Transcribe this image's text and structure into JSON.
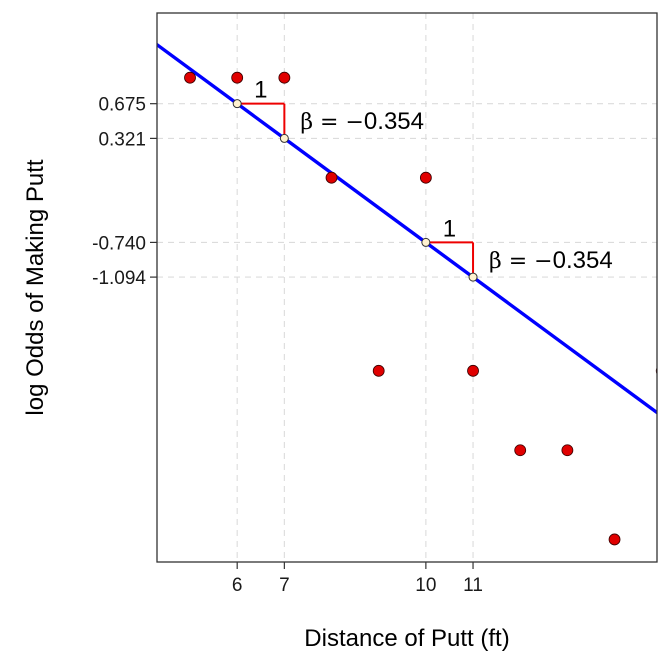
{
  "chart_data": {
    "type": "scatter",
    "xlabel": "Distance of Putt (ft)",
    "ylabel": "log Odds of Making Putt",
    "xlim": [
      4.3,
      14.9
    ],
    "ylim": [
      -4.0,
      1.6
    ],
    "x_ticks": [
      {
        "value": 6,
        "label": "6"
      },
      {
        "value": 7,
        "label": "7"
      },
      {
        "value": 10,
        "label": "10"
      },
      {
        "value": 11,
        "label": "11"
      }
    ],
    "y_ticks": [
      {
        "value": 0.675,
        "label": "0.675"
      },
      {
        "value": 0.321,
        "label": "0.321"
      },
      {
        "value": -0.74,
        "label": "-0.740"
      },
      {
        "value": -1.094,
        "label": "-1.094"
      }
    ],
    "grid": true,
    "points": [
      {
        "x": 5,
        "y": 0.94
      },
      {
        "x": 6,
        "y": 0.94
      },
      {
        "x": 7,
        "y": 0.94
      },
      {
        "x": 8,
        "y": -0.08
      },
      {
        "x": 9,
        "y": -2.05
      },
      {
        "x": 10,
        "y": -0.08
      },
      {
        "x": 11,
        "y": -2.05
      },
      {
        "x": 12,
        "y": -2.86
      },
      {
        "x": 13,
        "y": -2.86
      },
      {
        "x": 14,
        "y": -3.77
      },
      {
        "x": 15,
        "y": -2.05
      }
    ],
    "fit_line": {
      "slope": -0.354,
      "intercept": 2.799
    },
    "slope_annotations": [
      {
        "x_start": 6,
        "x_end": 7,
        "y_start": 0.675,
        "y_end": 0.321,
        "run_label": "1",
        "beta_prefix": "β = −",
        "beta_value": "0.354"
      },
      {
        "x_start": 10,
        "x_end": 11,
        "y_start": -0.74,
        "y_end": -1.094,
        "run_label": "1",
        "beta_prefix": "β = −",
        "beta_value": "0.354"
      }
    ],
    "colors": {
      "points": "#e00000",
      "line": "#0000ff",
      "annotation": "#ee0000",
      "grid": "#dcdcdc"
    }
  }
}
